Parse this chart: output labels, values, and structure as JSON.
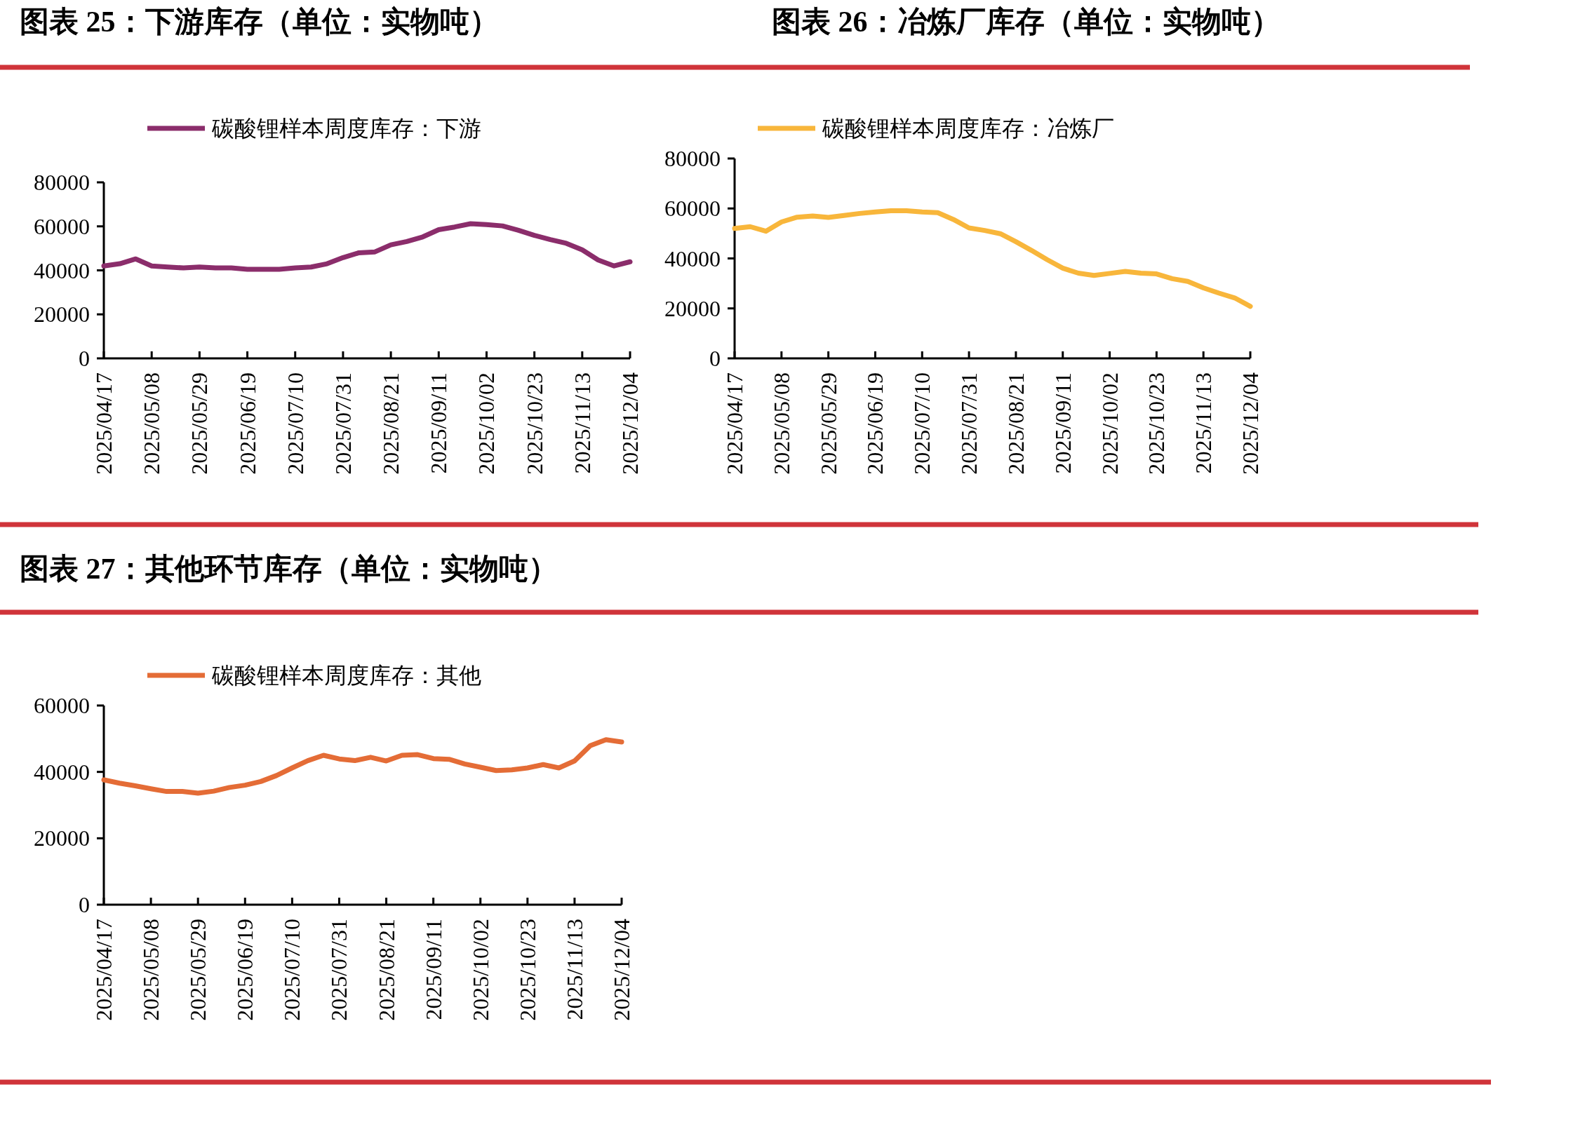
{
  "chart_data": [
    {
      "type": "line",
      "title": "图表 25：下游库存（单位：实物吨）",
      "categories": [
        "2025/04/17",
        null,
        null,
        "2025/05/08",
        null,
        null,
        "2025/05/29",
        null,
        null,
        "2025/06/19",
        null,
        null,
        "2025/07/10",
        null,
        null,
        "2025/07/31",
        null,
        null,
        "2025/08/21",
        null,
        null,
        "2025/09/11",
        null,
        null,
        "2025/10/02",
        null,
        null,
        "2025/10/23",
        null,
        null,
        "2025/11/13",
        null,
        null,
        "2025/12/04"
      ],
      "series": [
        {
          "name": "碳酸锂样本周度库存：下游",
          "color": "#8b2d6b",
          "values": [
            42000,
            43000,
            45200,
            42000,
            41500,
            41100,
            41500,
            41100,
            41100,
            40500,
            40500,
            40500,
            41100,
            41500,
            43000,
            45800,
            48000,
            48400,
            51600,
            53100,
            55200,
            58500,
            59700,
            61200,
            60800,
            60200,
            58200,
            55900,
            54000,
            52300,
            49300,
            44700,
            42000,
            43900
          ]
        }
      ],
      "ylim": [
        0,
        80000
      ],
      "yticks": [
        0,
        20000,
        40000,
        60000,
        80000
      ],
      "legend": "top",
      "grid": false,
      "marker": "none",
      "line_style": "solid"
    },
    {
      "type": "line",
      "title": "图表 26：冶炼厂库存（单位：实物吨）",
      "categories": [
        "2025/04/17",
        null,
        null,
        "2025/05/08",
        null,
        null,
        "2025/05/29",
        null,
        null,
        "2025/06/19",
        null,
        null,
        "2025/07/10",
        null,
        null,
        "2025/07/31",
        null,
        null,
        "2025/08/21",
        null,
        null,
        "2025/09/11",
        null,
        null,
        "2025/10/02",
        null,
        null,
        "2025/10/23",
        null,
        null,
        "2025/11/13",
        null,
        null,
        "2025/12/04"
      ],
      "series": [
        {
          "name": "碳酸锂样本周度库存：冶炼厂",
          "color": "#f8b63b",
          "values": [
            52000,
            52700,
            50900,
            54600,
            56500,
            57000,
            56400,
            57200,
            58000,
            58600,
            59100,
            59100,
            58600,
            58300,
            55600,
            52200,
            51200,
            49900,
            46700,
            43200,
            39500,
            36100,
            34100,
            33200,
            34000,
            34800,
            34100,
            33800,
            31900,
            30800,
            28200,
            26100,
            24200,
            20800
          ]
        }
      ],
      "ylim": [
        0,
        80000
      ],
      "yticks": [
        0,
        20000,
        40000,
        60000,
        80000
      ],
      "legend": "top",
      "grid": false,
      "marker": "none",
      "line_style": "solid"
    },
    {
      "type": "line",
      "title": "图表 27：其他环节库存（单位：实物吨）",
      "categories": [
        "2025/04/17",
        null,
        null,
        "2025/05/08",
        null,
        null,
        "2025/05/29",
        null,
        null,
        "2025/06/19",
        null,
        null,
        "2025/07/10",
        null,
        null,
        "2025/07/31",
        null,
        null,
        "2025/08/21",
        null,
        null,
        "2025/09/11",
        null,
        null,
        "2025/10/02",
        null,
        null,
        "2025/10/23",
        null,
        null,
        "2025/11/13",
        null,
        null,
        "2025/12/04"
      ],
      "series": [
        {
          "name": "碳酸锂样本周度库存：其他",
          "color": "#e46c36",
          "values": [
            37600,
            36600,
            35800,
            34900,
            34100,
            34100,
            33600,
            34200,
            35300,
            36000,
            37100,
            38900,
            41200,
            43400,
            45000,
            43900,
            43400,
            44400,
            43300,
            45000,
            45200,
            44000,
            43800,
            42400,
            41400,
            40400,
            40600,
            41200,
            42200,
            41200,
            43300,
            47900,
            49700,
            49000
          ]
        }
      ],
      "ylim": [
        0,
        60000
      ],
      "yticks": [
        0,
        20000,
        40000,
        60000
      ],
      "legend": "top",
      "grid": false,
      "marker": "none",
      "line_style": "solid"
    }
  ]
}
